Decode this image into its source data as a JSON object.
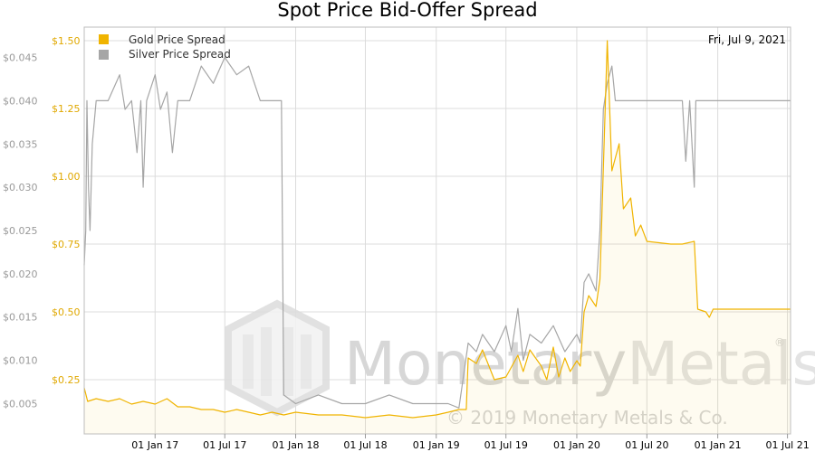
{
  "chart_data": {
    "type": "line",
    "title": "Spot Price Bid-Offer Spread",
    "date_label": "Fri, Jul 9, 2021",
    "x_ticks": [
      "01 Jan 17",
      "01 Jul 17",
      "01 Jan 18",
      "01 Jul 18",
      "01 Jan 19",
      "01 Jul 19",
      "01 Jan 20",
      "01 Jul 20",
      "01 Jan 21",
      "01 Jul 21"
    ],
    "x_range": [
      "2016-07-01",
      "2021-07-09"
    ],
    "y_left": {
      "ticks": [
        "$0.005",
        "$0.010",
        "$0.015",
        "$0.020",
        "$0.025",
        "$0.030",
        "$0.035",
        "$0.040",
        "$0.045"
      ],
      "range": [
        0.0015,
        0.0485
      ]
    },
    "y_right": {
      "ticks": [
        "$0.25",
        "$0.50",
        "$0.75",
        "$1.00",
        "$1.25",
        "$1.50"
      ],
      "range": [
        0.05,
        1.55
      ]
    },
    "grid": true,
    "legend_position": "top-left",
    "watermark": {
      "brand": "MonetaryMetals",
      "brand_part1": "Monetary",
      "brand_part2": "Metals",
      "registered": "®",
      "copyright": "© 2019 Monetary Metals & Co."
    },
    "series": [
      {
        "name": "Gold Price Spread",
        "axis": "right",
        "color": "#f0b400",
        "points": [
          [
            "2016-07-01",
            0.22
          ],
          [
            "2016-07-10",
            0.17
          ],
          [
            "2016-08-01",
            0.18
          ],
          [
            "2016-09-01",
            0.17
          ],
          [
            "2016-10-01",
            0.18
          ],
          [
            "2016-11-01",
            0.16
          ],
          [
            "2016-12-01",
            0.17
          ],
          [
            "2017-01-01",
            0.16
          ],
          [
            "2017-02-01",
            0.18
          ],
          [
            "2017-03-01",
            0.15
          ],
          [
            "2017-04-01",
            0.15
          ],
          [
            "2017-05-01",
            0.14
          ],
          [
            "2017-06-01",
            0.14
          ],
          [
            "2017-07-01",
            0.13
          ],
          [
            "2017-08-01",
            0.14
          ],
          [
            "2017-09-01",
            0.13
          ],
          [
            "2017-10-01",
            0.12
          ],
          [
            "2017-11-01",
            0.13
          ],
          [
            "2017-12-01",
            0.12
          ],
          [
            "2018-01-01",
            0.13
          ],
          [
            "2018-03-01",
            0.12
          ],
          [
            "2018-05-01",
            0.12
          ],
          [
            "2018-07-01",
            0.11
          ],
          [
            "2018-09-01",
            0.12
          ],
          [
            "2018-11-01",
            0.11
          ],
          [
            "2019-01-01",
            0.12
          ],
          [
            "2019-02-01",
            0.13
          ],
          [
            "2019-03-01",
            0.14
          ],
          [
            "2019-03-20",
            0.14
          ],
          [
            "2019-03-25",
            0.33
          ],
          [
            "2019-04-15",
            0.31
          ],
          [
            "2019-05-01",
            0.36
          ],
          [
            "2019-06-01",
            0.25
          ],
          [
            "2019-07-01",
            0.26
          ],
          [
            "2019-08-01",
            0.34
          ],
          [
            "2019-08-15",
            0.28
          ],
          [
            "2019-09-01",
            0.36
          ],
          [
            "2019-10-01",
            0.3
          ],
          [
            "2019-10-15",
            0.25
          ],
          [
            "2019-11-01",
            0.37
          ],
          [
            "2019-11-15",
            0.26
          ],
          [
            "2019-12-01",
            0.33
          ],
          [
            "2019-12-15",
            0.28
          ],
          [
            "2020-01-01",
            0.32
          ],
          [
            "2020-01-10",
            0.3
          ],
          [
            "2020-01-20",
            0.5
          ],
          [
            "2020-02-01",
            0.56
          ],
          [
            "2020-02-20",
            0.52
          ],
          [
            "2020-03-01",
            0.62
          ],
          [
            "2020-03-20",
            1.5
          ],
          [
            "2020-04-01",
            1.02
          ],
          [
            "2020-04-20",
            1.12
          ],
          [
            "2020-05-01",
            0.88
          ],
          [
            "2020-05-20",
            0.92
          ],
          [
            "2020-06-01",
            0.78
          ],
          [
            "2020-06-15",
            0.82
          ],
          [
            "2020-07-01",
            0.76
          ],
          [
            "2020-09-01",
            0.75
          ],
          [
            "2020-10-01",
            0.75
          ],
          [
            "2020-11-01",
            0.76
          ],
          [
            "2020-11-10",
            0.51
          ],
          [
            "2020-12-01",
            0.5
          ],
          [
            "2020-12-10",
            0.48
          ],
          [
            "2020-12-20",
            0.51
          ],
          [
            "2021-03-01",
            0.51
          ],
          [
            "2021-07-09",
            0.51
          ]
        ]
      },
      {
        "name": "Silver Price Spread",
        "axis": "left",
        "color": "#a6a6a6",
        "points": [
          [
            "2016-07-01",
            0.021
          ],
          [
            "2016-07-05",
            0.025
          ],
          [
            "2016-07-08",
            0.04
          ],
          [
            "2016-07-12",
            0.03
          ],
          [
            "2016-07-16",
            0.025
          ],
          [
            "2016-07-22",
            0.035
          ],
          [
            "2016-08-01",
            0.04
          ],
          [
            "2016-09-01",
            0.04
          ],
          [
            "2016-10-01",
            0.043
          ],
          [
            "2016-10-15",
            0.039
          ],
          [
            "2016-11-01",
            0.04
          ],
          [
            "2016-11-15",
            0.034
          ],
          [
            "2016-11-25",
            0.04
          ],
          [
            "2016-12-01",
            0.03
          ],
          [
            "2016-12-10",
            0.04
          ],
          [
            "2017-01-01",
            0.043
          ],
          [
            "2017-01-15",
            0.039
          ],
          [
            "2017-02-01",
            0.041
          ],
          [
            "2017-02-15",
            0.034
          ],
          [
            "2017-03-01",
            0.04
          ],
          [
            "2017-04-01",
            0.04
          ],
          [
            "2017-05-01",
            0.044
          ],
          [
            "2017-06-01",
            0.042
          ],
          [
            "2017-07-01",
            0.045
          ],
          [
            "2017-08-01",
            0.043
          ],
          [
            "2017-09-01",
            0.044
          ],
          [
            "2017-10-01",
            0.04
          ],
          [
            "2017-11-01",
            0.04
          ],
          [
            "2017-11-25",
            0.04
          ],
          [
            "2017-12-01",
            0.006
          ],
          [
            "2018-01-01",
            0.005
          ],
          [
            "2018-03-01",
            0.006
          ],
          [
            "2018-05-01",
            0.005
          ],
          [
            "2018-07-01",
            0.005
          ],
          [
            "2018-09-01",
            0.006
          ],
          [
            "2018-11-01",
            0.005
          ],
          [
            "2019-01-01",
            0.005
          ],
          [
            "2019-02-01",
            0.005
          ],
          [
            "2019-03-01",
            0.0045
          ],
          [
            "2019-03-25",
            0.012
          ],
          [
            "2019-04-15",
            0.011
          ],
          [
            "2019-05-01",
            0.013
          ],
          [
            "2019-06-01",
            0.011
          ],
          [
            "2019-07-01",
            0.014
          ],
          [
            "2019-07-15",
            0.011
          ],
          [
            "2019-08-01",
            0.016
          ],
          [
            "2019-08-15",
            0.01
          ],
          [
            "2019-09-01",
            0.013
          ],
          [
            "2019-10-01",
            0.012
          ],
          [
            "2019-11-01",
            0.014
          ],
          [
            "2019-12-01",
            0.011
          ],
          [
            "2020-01-01",
            0.013
          ],
          [
            "2020-01-10",
            0.012
          ],
          [
            "2020-01-20",
            0.019
          ],
          [
            "2020-02-01",
            0.02
          ],
          [
            "2020-02-20",
            0.018
          ],
          [
            "2020-03-01",
            0.025
          ],
          [
            "2020-03-10",
            0.039
          ],
          [
            "2020-03-20",
            0.042
          ],
          [
            "2020-04-01",
            0.044
          ],
          [
            "2020-04-10",
            0.04
          ],
          [
            "2020-10-01",
            0.04
          ],
          [
            "2020-10-10",
            0.033
          ],
          [
            "2020-10-20",
            0.04
          ],
          [
            "2020-11-01",
            0.03
          ],
          [
            "2020-11-05",
            0.04
          ],
          [
            "2021-07-09",
            0.04
          ]
        ]
      }
    ]
  }
}
